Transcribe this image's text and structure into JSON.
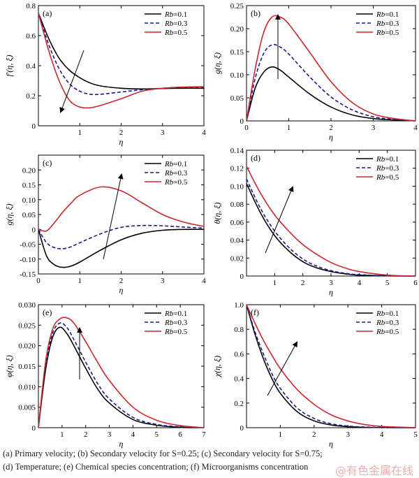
{
  "legend_entries": [
    "Rb=0.1",
    "Rb=0.3",
    "Rb=0.5"
  ],
  "series_colors": [
    "#000000",
    "#1a1a8c",
    "#c8282d"
  ],
  "series_dashes": [
    "solid",
    "dashed",
    "solid"
  ],
  "caption": {
    "line1": "(a)  Primary  velocity;  (b)  Secondary  velocity  for  S=0.25; (c)  Secondary  velocity  for  S=0.75;",
    "line2": "(d)  Temperature;  (e)  Chemical  species  concentration;  (f)  Microorganisms  concentration"
  },
  "watermark": "@有色金属在线",
  "chart_data": [
    {
      "type": "line",
      "panel": "(a)",
      "xlabel": "η",
      "ylabel": "f′(η, ξ)",
      "xlim": [
        0,
        4
      ],
      "ylim": [
        0,
        0.8
      ],
      "xticks": [
        "1",
        "2",
        "3",
        "4"
      ],
      "xtick_values": [
        1,
        2,
        3,
        4
      ],
      "yticks": [
        "0",
        "0.2",
        "0.4",
        "0.6",
        "0.8"
      ],
      "ytick_values": [
        0,
        0.2,
        0.4,
        0.6,
        0.8
      ],
      "legend": "top-right",
      "series": [
        {
          "name": "Rb=0.1",
          "x": [
            0,
            0.25,
            0.5,
            0.75,
            1,
            1.25,
            1.5,
            2,
            2.5,
            3,
            3.5,
            4
          ],
          "y": [
            0.75,
            0.58,
            0.45,
            0.37,
            0.32,
            0.285,
            0.265,
            0.25,
            0.245,
            0.248,
            0.25,
            0.25
          ]
        },
        {
          "name": "Rb=0.3",
          "x": [
            0,
            0.25,
            0.5,
            0.75,
            1,
            1.25,
            1.5,
            2,
            2.5,
            3,
            3.5,
            4
          ],
          "y": [
            0.75,
            0.54,
            0.38,
            0.28,
            0.23,
            0.21,
            0.21,
            0.225,
            0.24,
            0.25,
            0.255,
            0.255
          ]
        },
        {
          "name": "Rb=0.5",
          "x": [
            0,
            0.25,
            0.5,
            0.75,
            1,
            1.25,
            1.5,
            2,
            2.5,
            3,
            3.5,
            4
          ],
          "y": [
            0.75,
            0.5,
            0.3,
            0.17,
            0.125,
            0.12,
            0.135,
            0.18,
            0.23,
            0.25,
            0.258,
            0.26
          ]
        }
      ]
    },
    {
      "type": "line",
      "panel": "(b)",
      "xlabel": "η",
      "ylabel": "g(η, ξ)",
      "xlim": [
        0,
        4
      ],
      "ylim": [
        0,
        0.25
      ],
      "xticks": [
        "0",
        "1",
        "2",
        "3",
        "4"
      ],
      "xtick_values": [
        0,
        1,
        2,
        3,
        4
      ],
      "yticks": [
        "0",
        "0.05",
        "0.10",
        "0.15",
        "0.20",
        "0.25"
      ],
      "ytick_values": [
        0,
        0.05,
        0.1,
        0.15,
        0.2,
        0.25
      ],
      "legend": "top-right",
      "series": [
        {
          "name": "Rb=0.1",
          "x": [
            0,
            0.2,
            0.4,
            0.6,
            0.8,
            1,
            1.5,
            2,
            2.5,
            3,
            3.5,
            4
          ],
          "y": [
            0,
            0.07,
            0.105,
            0.117,
            0.11,
            0.095,
            0.058,
            0.03,
            0.013,
            0.005,
            0.002,
            0
          ]
        },
        {
          "name": "Rb=0.3",
          "x": [
            0,
            0.2,
            0.4,
            0.6,
            0.8,
            1,
            1.5,
            2,
            2.5,
            3,
            3.5,
            4
          ],
          "y": [
            0,
            0.09,
            0.145,
            0.165,
            0.16,
            0.145,
            0.095,
            0.052,
            0.024,
            0.009,
            0.003,
            0
          ]
        },
        {
          "name": "Rb=0.5",
          "x": [
            0,
            0.2,
            0.4,
            0.6,
            0.8,
            1,
            1.5,
            2,
            2.5,
            3,
            3.5,
            4
          ],
          "y": [
            0,
            0.11,
            0.19,
            0.225,
            0.225,
            0.21,
            0.148,
            0.085,
            0.04,
            0.015,
            0.005,
            0
          ]
        }
      ]
    },
    {
      "type": "line",
      "panel": "(c)",
      "xlabel": "η",
      "ylabel": "g(η, ξ)",
      "xlim": [
        0,
        4
      ],
      "ylim": [
        -0.15,
        0.25
      ],
      "xticks": [
        "0",
        "1",
        "2",
        "3",
        "4"
      ],
      "xtick_values": [
        0,
        1,
        2,
        3,
        4
      ],
      "yticks": [
        "-0.15",
        "-0.10",
        "-0.05",
        "0",
        "0.05",
        "0.10",
        "0.15",
        "0.20"
      ],
      "ytick_values": [
        -0.15,
        -0.1,
        -0.05,
        0,
        0.05,
        0.1,
        0.15,
        0.2
      ],
      "legend": "top-right",
      "series": [
        {
          "name": "Rb=0.1",
          "x": [
            0,
            0.2,
            0.4,
            0.6,
            0.8,
            1,
            1.5,
            2,
            2.5,
            3,
            3.5,
            4
          ],
          "y": [
            0,
            -0.09,
            -0.12,
            -0.128,
            -0.123,
            -0.11,
            -0.07,
            -0.035,
            -0.013,
            -0.003,
            0,
            0
          ]
        },
        {
          "name": "Rb=0.3",
          "x": [
            0,
            0.2,
            0.4,
            0.6,
            0.8,
            1,
            1.5,
            2,
            2.5,
            3,
            3.5,
            4
          ],
          "y": [
            0,
            -0.045,
            -0.062,
            -0.065,
            -0.058,
            -0.045,
            -0.015,
            0.007,
            0.013,
            0.012,
            0.008,
            0.004
          ]
        },
        {
          "name": "Rb=0.5",
          "x": [
            0,
            0.2,
            0.4,
            0.6,
            0.8,
            1,
            1.5,
            2,
            2.5,
            3,
            3.5,
            4
          ],
          "y": [
            0,
            -0.005,
            0.025,
            0.06,
            0.09,
            0.115,
            0.143,
            0.13,
            0.09,
            0.05,
            0.025,
            0.01
          ]
        }
      ]
    },
    {
      "type": "line",
      "panel": "(d)",
      "xlabel": "η",
      "ylabel": "θ(η, ξ)",
      "xlim": [
        0,
        6
      ],
      "ylim": [
        0,
        0.14
      ],
      "xticks": [
        "1",
        "2",
        "3",
        "4",
        "5",
        "6"
      ],
      "xtick_values": [
        1,
        2,
        3,
        4,
        5,
        6
      ],
      "yticks": [
        "0",
        "0.02",
        "0.04",
        "0.06",
        "0.08",
        "0.10",
        "0.12",
        "0.14"
      ],
      "ytick_values": [
        0,
        0.02,
        0.04,
        0.06,
        0.08,
        0.1,
        0.12,
        0.14
      ],
      "legend": "top-right",
      "series": [
        {
          "name": "Rb=0.1",
          "x": [
            0,
            0.5,
            1,
            1.5,
            2,
            2.5,
            3,
            3.5,
            4,
            5,
            6
          ],
          "y": [
            0.103,
            0.07,
            0.045,
            0.028,
            0.016,
            0.009,
            0.005,
            0.0025,
            0.001,
            0.0002,
            0
          ]
        },
        {
          "name": "Rb=0.3",
          "x": [
            0,
            0.5,
            1,
            1.5,
            2,
            2.5,
            3,
            3.5,
            4,
            5,
            6
          ],
          "y": [
            0.108,
            0.075,
            0.05,
            0.032,
            0.019,
            0.011,
            0.006,
            0.003,
            0.0015,
            0.0003,
            0
          ]
        },
        {
          "name": "Rb=0.5",
          "x": [
            0,
            0.5,
            1,
            1.5,
            2,
            2.5,
            3,
            3.5,
            4,
            5,
            6
          ],
          "y": [
            0.122,
            0.092,
            0.068,
            0.05,
            0.035,
            0.024,
            0.015,
            0.009,
            0.005,
            0.001,
            0
          ]
        }
      ]
    },
    {
      "type": "line",
      "panel": "(e)",
      "xlabel": "η",
      "ylabel": "φ(η, ξ)",
      "xlim": [
        0,
        7
      ],
      "ylim": [
        0,
        0.03
      ],
      "xticks": [
        "1",
        "2",
        "3",
        "4",
        "5",
        "6",
        "7"
      ],
      "xtick_values": [
        1,
        2,
        3,
        4,
        5,
        6,
        7
      ],
      "yticks": [
        "0",
        "0.005",
        "0.010",
        "0.015",
        "0.020",
        "0.025",
        "0.030"
      ],
      "ytick_values": [
        0,
        0.005,
        0.01,
        0.015,
        0.02,
        0.025,
        0.03
      ],
      "legend": "top-right",
      "series": [
        {
          "name": "Rb=0.1",
          "x": [
            0,
            0.3,
            0.6,
            0.9,
            1.2,
            1.5,
            2,
            2.5,
            3,
            4,
            5,
            6,
            7
          ],
          "y": [
            0,
            0.014,
            0.022,
            0.0245,
            0.023,
            0.02,
            0.0145,
            0.0095,
            0.006,
            0.002,
            0.0006,
            0.0001,
            0
          ]
        },
        {
          "name": "Rb=0.3",
          "x": [
            0,
            0.3,
            0.6,
            0.9,
            1.2,
            1.5,
            2,
            2.5,
            3,
            4,
            5,
            6,
            7
          ],
          "y": [
            0,
            0.015,
            0.023,
            0.0255,
            0.0245,
            0.0215,
            0.016,
            0.0108,
            0.007,
            0.0025,
            0.0008,
            0.0002,
            0
          ]
        },
        {
          "name": "Rb=0.5",
          "x": [
            0,
            0.3,
            0.6,
            0.9,
            1.2,
            1.5,
            2,
            2.5,
            3,
            4,
            5,
            6,
            7
          ],
          "y": [
            0,
            0.016,
            0.024,
            0.0265,
            0.0268,
            0.0255,
            0.021,
            0.016,
            0.0115,
            0.005,
            0.0018,
            0.0005,
            0
          ]
        }
      ]
    },
    {
      "type": "line",
      "panel": "(f)",
      "xlabel": "η",
      "ylabel": "χ(η, ξ)",
      "xlim": [
        0,
        5
      ],
      "ylim": [
        0,
        1.0
      ],
      "xticks": [
        "1",
        "2",
        "3",
        "4",
        "5"
      ],
      "xtick_values": [
        1,
        2,
        3,
        4,
        5
      ],
      "yticks": [
        "0",
        "0.2",
        "0.4",
        "0.6",
        "0.8",
        "1.0"
      ],
      "ytick_values": [
        0,
        0.2,
        0.4,
        0.6,
        0.8,
        1.0
      ],
      "legend": "top-right",
      "series": [
        {
          "name": "Rb=0.1",
          "x": [
            0,
            0.25,
            0.5,
            0.75,
            1,
            1.5,
            2,
            2.5,
            3,
            3.5,
            4,
            5
          ],
          "y": [
            1.0,
            0.76,
            0.56,
            0.4,
            0.28,
            0.13,
            0.055,
            0.022,
            0.008,
            0.003,
            0.001,
            0
          ]
        },
        {
          "name": "Rb=0.3",
          "x": [
            0,
            0.25,
            0.5,
            0.75,
            1,
            1.5,
            2,
            2.5,
            3,
            3.5,
            4,
            5
          ],
          "y": [
            1.0,
            0.78,
            0.6,
            0.44,
            0.32,
            0.16,
            0.075,
            0.032,
            0.013,
            0.005,
            0.002,
            0
          ]
        },
        {
          "name": "Rb=0.5",
          "x": [
            0,
            0.25,
            0.5,
            0.75,
            1,
            1.5,
            2,
            2.5,
            3,
            3.5,
            4,
            5
          ],
          "y": [
            1.0,
            0.85,
            0.71,
            0.59,
            0.48,
            0.31,
            0.19,
            0.105,
            0.055,
            0.025,
            0.01,
            0
          ]
        }
      ]
    }
  ]
}
